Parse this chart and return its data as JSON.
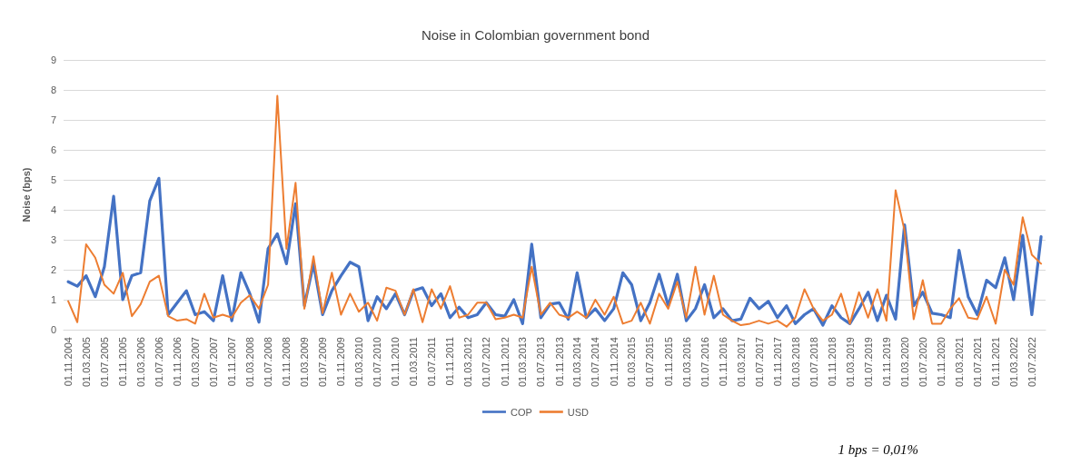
{
  "chart_data": {
    "type": "line",
    "title": "Noise in Colombian government bond",
    "ylabel": "Noise (bps)",
    "annotations": [
      "1 bps = 0,01%"
    ],
    "x": [
      "2004-11",
      "2005-01",
      "2005-03",
      "2005-05",
      "2005-07",
      "2005-09",
      "2005-11",
      "2006-01",
      "2006-03",
      "2006-05",
      "2006-07",
      "2006-09",
      "2006-11",
      "2007-01",
      "2007-03",
      "2007-05",
      "2007-07",
      "2007-09",
      "2007-11",
      "2008-01",
      "2008-03",
      "2008-05",
      "2008-07",
      "2008-09",
      "2008-11",
      "2009-01",
      "2009-03",
      "2009-05",
      "2009-07",
      "2009-09",
      "2009-11",
      "2010-01",
      "2010-03",
      "2010-05",
      "2010-07",
      "2010-09",
      "2010-11",
      "2011-01",
      "2011-03",
      "2011-05",
      "2011-07",
      "2011-09",
      "2011-11",
      "2012-01",
      "2012-03",
      "2012-05",
      "2012-07",
      "2012-09",
      "2012-11",
      "2013-01",
      "2013-03",
      "2013-05",
      "2013-07",
      "2013-09",
      "2013-11",
      "2014-01",
      "2014-03",
      "2014-05",
      "2014-07",
      "2014-09",
      "2014-11",
      "2015-01",
      "2015-03",
      "2015-05",
      "2015-07",
      "2015-09",
      "2015-11",
      "2016-01",
      "2016-03",
      "2016-05",
      "2016-07",
      "2016-09",
      "2016-11",
      "2017-01",
      "2017-03",
      "2017-05",
      "2017-07",
      "2017-09",
      "2017-11",
      "2018-01",
      "2018-03",
      "2018-05",
      "2018-07",
      "2018-09",
      "2018-11",
      "2019-01",
      "2019-03",
      "2019-05",
      "2019-07",
      "2019-09",
      "2019-11",
      "2020-01",
      "2020-03",
      "2020-05",
      "2020-07",
      "2020-09",
      "2020-11",
      "2021-01",
      "2021-03",
      "2021-05",
      "2021-07",
      "2021-09",
      "2021-11",
      "2022-01",
      "2022-03",
      "2022-05",
      "2022-07",
      "2022-09"
    ],
    "series": [
      {
        "name": "COP",
        "color": "#4472c4",
        "values": [
          1.6,
          1.45,
          1.8,
          1.1,
          2.1,
          4.45,
          1.0,
          1.8,
          1.9,
          4.3,
          5.05,
          0.5,
          0.9,
          1.3,
          0.5,
          0.6,
          0.3,
          1.8,
          0.3,
          1.9,
          1.2,
          0.25,
          2.7,
          3.2,
          2.2,
          4.2,
          0.8,
          2.2,
          0.5,
          1.3,
          1.8,
          2.25,
          2.1,
          0.3,
          1.1,
          0.7,
          1.2,
          0.5,
          1.3,
          1.4,
          0.8,
          1.2,
          0.4,
          0.75,
          0.4,
          0.5,
          0.9,
          0.5,
          0.45,
          1.0,
          0.2,
          2.85,
          0.4,
          0.85,
          0.9,
          0.35,
          1.9,
          0.4,
          0.7,
          0.3,
          0.7,
          1.9,
          1.5,
          0.3,
          0.9,
          1.85,
          0.8,
          1.85,
          0.3,
          0.7,
          1.5,
          0.4,
          0.7,
          0.3,
          0.35,
          1.05,
          0.7,
          0.95,
          0.4,
          0.8,
          0.2,
          0.5,
          0.7,
          0.15,
          0.8,
          0.4,
          0.2,
          0.7,
          1.25,
          0.3,
          1.15,
          0.35,
          3.5,
          0.8,
          1.25,
          0.55,
          0.5,
          0.4,
          2.65,
          1.1,
          0.5,
          1.65,
          1.4,
          2.4,
          1.0,
          3.15,
          0.5,
          3.1
        ]
      },
      {
        "name": "USD",
        "color": "#ed7d31",
        "values": [
          0.95,
          0.25,
          2.85,
          2.4,
          1.5,
          1.2,
          1.9,
          0.45,
          0.85,
          1.6,
          1.8,
          0.45,
          0.3,
          0.35,
          0.2,
          1.2,
          0.4,
          0.5,
          0.4,
          0.9,
          1.15,
          0.7,
          1.5,
          7.8,
          2.7,
          4.9,
          0.7,
          2.45,
          0.55,
          1.9,
          0.5,
          1.2,
          0.6,
          0.9,
          0.3,
          1.4,
          1.3,
          0.5,
          1.35,
          0.25,
          1.35,
          0.7,
          1.45,
          0.4,
          0.5,
          0.9,
          0.9,
          0.35,
          0.4,
          0.5,
          0.4,
          2.1,
          0.5,
          0.9,
          0.5,
          0.4,
          0.6,
          0.4,
          1.0,
          0.5,
          1.1,
          0.2,
          0.3,
          0.9,
          0.2,
          1.2,
          0.7,
          1.6,
          0.4,
          2.1,
          0.5,
          1.8,
          0.5,
          0.3,
          0.15,
          0.2,
          0.3,
          0.2,
          0.3,
          0.1,
          0.4,
          1.35,
          0.7,
          0.3,
          0.5,
          1.2,
          0.2,
          1.25,
          0.4,
          1.35,
          0.3,
          4.65,
          3.3,
          0.35,
          1.65,
          0.2,
          0.2,
          0.7,
          1.05,
          0.4,
          0.35,
          1.1,
          0.2,
          2.0,
          1.5,
          3.75,
          2.5,
          2.2
        ]
      }
    ],
    "xlim": [
      "2004-10",
      "2022-10"
    ],
    "xticks": [
      {
        "value": "2004-11",
        "label": "01.11.2004"
      },
      {
        "value": "2005-03",
        "label": "01.03.2005"
      },
      {
        "value": "2005-07",
        "label": "01.07.2005"
      },
      {
        "value": "2005-11",
        "label": "01.11.2005"
      },
      {
        "value": "2006-03",
        "label": "01.03.2006"
      },
      {
        "value": "2006-07",
        "label": "01.07.2006"
      },
      {
        "value": "2006-11",
        "label": "01.11.2006"
      },
      {
        "value": "2007-03",
        "label": "01.03.2007"
      },
      {
        "value": "2007-07",
        "label": "01.07.2007"
      },
      {
        "value": "2007-11",
        "label": "01.11.2007"
      },
      {
        "value": "2008-03",
        "label": "01.03.2008"
      },
      {
        "value": "2008-07",
        "label": "01.07.2008"
      },
      {
        "value": "2008-11",
        "label": "01.11.2008"
      },
      {
        "value": "2009-03",
        "label": "01.03.2009"
      },
      {
        "value": "2009-07",
        "label": "01.07.2009"
      },
      {
        "value": "2009-11",
        "label": "01.11.2009"
      },
      {
        "value": "2010-03",
        "label": "01.03.2010"
      },
      {
        "value": "2010-07",
        "label": "01.07.2010"
      },
      {
        "value": "2010-11",
        "label": "01.11.2010"
      },
      {
        "value": "2011-03",
        "label": "01.03.2011"
      },
      {
        "value": "2011-07",
        "label": "01.07.2011"
      },
      {
        "value": "2011-11",
        "label": "01.11.2011"
      },
      {
        "value": "2012-03",
        "label": "01.03.2012"
      },
      {
        "value": "2012-07",
        "label": "01.07.2012"
      },
      {
        "value": "2012-11",
        "label": "01.11.2012"
      },
      {
        "value": "2013-03",
        "label": "01.03.2013"
      },
      {
        "value": "2013-07",
        "label": "01.07.2013"
      },
      {
        "value": "2013-11",
        "label": "01.11.2013"
      },
      {
        "value": "2014-03",
        "label": "01.03.2014"
      },
      {
        "value": "2014-07",
        "label": "01.07.2014"
      },
      {
        "value": "2014-11",
        "label": "01.11.2014"
      },
      {
        "value": "2015-03",
        "label": "01.03.2015"
      },
      {
        "value": "2015-07",
        "label": "01.07.2015"
      },
      {
        "value": "2015-11",
        "label": "01.11.2015"
      },
      {
        "value": "2016-03",
        "label": "01.03.2016"
      },
      {
        "value": "2016-07",
        "label": "01.07.2016"
      },
      {
        "value": "2016-11",
        "label": "01.11.2016"
      },
      {
        "value": "2017-03",
        "label": "01.03.2017"
      },
      {
        "value": "2017-07",
        "label": "01.07.2017"
      },
      {
        "value": "2017-11",
        "label": "01.11.2017"
      },
      {
        "value": "2018-03",
        "label": "01.03.2018"
      },
      {
        "value": "2018-07",
        "label": "01.07.2018"
      },
      {
        "value": "2018-11",
        "label": "01.11.2018"
      },
      {
        "value": "2019-03",
        "label": "01.03.2019"
      },
      {
        "value": "2019-07",
        "label": "01.07.2019"
      },
      {
        "value": "2019-11",
        "label": "01.11.2019"
      },
      {
        "value": "2020-03",
        "label": "01.03.2020"
      },
      {
        "value": "2020-07",
        "label": "01.07.2020"
      },
      {
        "value": "2020-11",
        "label": "01.11.2020"
      },
      {
        "value": "2021-03",
        "label": "01.03.2021"
      },
      {
        "value": "2021-07",
        "label": "01.07.2021"
      },
      {
        "value": "2021-11",
        "label": "01.11.2021"
      },
      {
        "value": "2022-03",
        "label": "01.03.2022"
      },
      {
        "value": "2022-07",
        "label": "01.07.2022"
      }
    ],
    "ylim": [
      0,
      9
    ],
    "yticks": [
      0,
      1,
      2,
      3,
      4,
      5,
      6,
      7,
      8,
      9
    ],
    "grid": "y",
    "legend": "bottom",
    "marker": "none",
    "line_style": "solid"
  }
}
